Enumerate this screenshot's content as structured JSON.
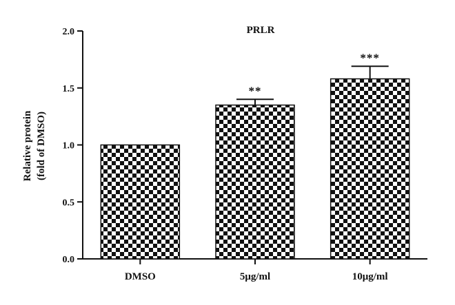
{
  "chart_data": {
    "type": "bar",
    "title": "PRLR",
    "ylabel_lines": [
      "Relative protein",
      "(fold of DMSO)"
    ],
    "xlabel": "",
    "categories": [
      "DMSO",
      "5μg/ml",
      "10μg/ml"
    ],
    "values": [
      1.0,
      1.35,
      1.58
    ],
    "errors": [
      0.0,
      0.05,
      0.11
    ],
    "significance": [
      "",
      "**",
      "***"
    ],
    "ylim": [
      0.0,
      2.0
    ],
    "yticks": [
      "0.0",
      "0.5",
      "1.0",
      "1.5",
      "2.0"
    ],
    "bar_pattern": "checkerboard",
    "colors": {
      "bar_dark": "#111111",
      "bar_light": "#ffffff",
      "axis": "#111111"
    },
    "grid": false,
    "legend": "none"
  }
}
